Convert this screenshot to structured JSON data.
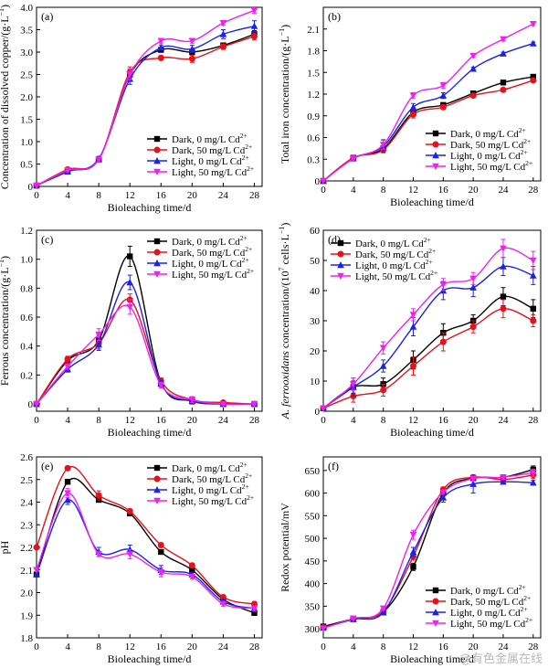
{
  "figure": {
    "watermark": "@有色金属在线",
    "series_legend": [
      {
        "label": "Dark, 0 mg/L Cd",
        "sup": "2+"
      },
      {
        "label": "Dark, 50 mg/L Cd",
        "sup": "2+"
      },
      {
        "label": "Light, 0 mg/L Cd",
        "sup": "2+"
      },
      {
        "label": "Light, 50 mg/L Cd",
        "sup": "2+"
      }
    ],
    "series_colors": [
      "#000000",
      "#e8101a",
      "#1a22e6",
      "#f020f0"
    ],
    "series_markers": [
      "square",
      "circle",
      "triangle-up",
      "triangle-down"
    ]
  },
  "chart_data": [
    {
      "type": "line",
      "panel_label": "(a)",
      "xlabel": "Bioleaching time/d",
      "ylabel": "Concentration of dissolved copper/(g·L",
      "ylabel_sup": "−1",
      "ylabel_tail": ")",
      "x": [
        0,
        4,
        8,
        12,
        16,
        20,
        24,
        28
      ],
      "xlim": [
        0,
        29
      ],
      "ylim": [
        0,
        4
      ],
      "xticks": [
        0,
        4,
        8,
        12,
        16,
        20,
        24,
        28
      ],
      "yticks": [
        0,
        0.5,
        1.0,
        1.5,
        2.0,
        2.5,
        3.0,
        3.5,
        4.0
      ],
      "ytick_labels": [
        "0",
        "0.5",
        "1.0",
        "1.5",
        "2.0",
        "2.5",
        "3.0",
        "3.5",
        "4.0"
      ],
      "legend_position": "lower-right",
      "series": [
        {
          "values": [
            0.02,
            0.35,
            0.6,
            2.5,
            3.05,
            3.0,
            3.15,
            3.4
          ],
          "err": [
            0,
            0.03,
            0.05,
            0.12,
            0.05,
            0.06,
            0.05,
            0.08
          ]
        },
        {
          "values": [
            0.02,
            0.38,
            0.6,
            2.55,
            2.87,
            2.85,
            3.12,
            3.35
          ],
          "err": [
            0,
            0.03,
            0.05,
            0.12,
            0.05,
            0.08,
            0.06,
            0.08
          ]
        },
        {
          "values": [
            0.02,
            0.33,
            0.62,
            2.4,
            3.1,
            3.07,
            3.4,
            3.58
          ],
          "err": [
            0,
            0.03,
            0.05,
            0.12,
            0.06,
            0.08,
            0.1,
            0.12
          ]
        },
        {
          "values": [
            0.02,
            0.36,
            0.6,
            2.5,
            3.25,
            3.25,
            3.65,
            3.93
          ],
          "err": [
            0,
            0.03,
            0.05,
            0.12,
            0.05,
            0.05,
            0.05,
            0.06
          ]
        }
      ]
    },
    {
      "type": "line",
      "panel_label": "(b)",
      "xlabel": "Bioleaching time/d",
      "ylabel": "Total iron concentration/(g·L",
      "ylabel_sup": "−1",
      "ylabel_tail": ")",
      "x": [
        0,
        4,
        8,
        12,
        16,
        20,
        24,
        28
      ],
      "xlim": [
        0,
        29
      ],
      "ylim": [
        0,
        2.4
      ],
      "xticks": [
        0,
        4,
        8,
        12,
        16,
        20,
        24,
        28
      ],
      "yticks": [
        0,
        0.3,
        0.6,
        0.9,
        1.2,
        1.5,
        1.8,
        2.1
      ],
      "ytick_labels": [
        "0",
        "0.3",
        "0.6",
        "0.9",
        "1.2",
        "1.5",
        "1.8",
        "2.1"
      ],
      "legend_position": "lower-right",
      "series": [
        {
          "values": [
            0,
            0.32,
            0.45,
            0.95,
            1.05,
            1.21,
            1.36,
            1.44
          ],
          "err": [
            0,
            0.02,
            0.03,
            0.04,
            0.03,
            0.02,
            0.02,
            0.02
          ]
        },
        {
          "values": [
            0,
            0.32,
            0.43,
            0.92,
            1.02,
            1.18,
            1.26,
            1.39
          ],
          "err": [
            0,
            0.02,
            0.03,
            0.05,
            0.03,
            0.02,
            0.02,
            0.02
          ]
        },
        {
          "values": [
            0,
            0.31,
            0.48,
            1.02,
            1.18,
            1.55,
            1.76,
            1.9
          ],
          "err": [
            0,
            0.02,
            0.09,
            0.05,
            0.04,
            0.02,
            0.02,
            0.02
          ]
        },
        {
          "values": [
            0,
            0.31,
            0.5,
            1.18,
            1.32,
            1.73,
            1.96,
            2.17
          ],
          "err": [
            0,
            0.02,
            0.06,
            0.04,
            0.04,
            0.02,
            0.02,
            0.02
          ]
        }
      ]
    },
    {
      "type": "line",
      "panel_label": "(c)",
      "xlabel": "Bioleaching time/d",
      "ylabel": "Ferrous concentration/(g·L",
      "ylabel_sup": "−1",
      "ylabel_tail": ")",
      "x": [
        0,
        4,
        8,
        12,
        16,
        20,
        24,
        28
      ],
      "xlim": [
        0,
        29
      ],
      "ylim": [
        -0.05,
        1.2
      ],
      "xticks": [
        0,
        4,
        8,
        12,
        16,
        20,
        24,
        28
      ],
      "yticks": [
        0,
        0.2,
        0.4,
        0.6,
        0.8,
        1.0,
        1.2
      ],
      "ytick_labels": [
        "0",
        "0.2",
        "0.4",
        "0.6",
        "0.8",
        "1.0",
        "1.2"
      ],
      "legend_position": "top-right",
      "series": [
        {
          "values": [
            0,
            0.3,
            0.44,
            1.02,
            0.15,
            0.02,
            0.0,
            0.0
          ],
          "err": [
            0,
            0.02,
            0.04,
            0.07,
            0.02,
            0.02,
            0.01,
            0.01
          ]
        },
        {
          "values": [
            0,
            0.31,
            0.42,
            0.72,
            0.16,
            0.03,
            0.01,
            0.0
          ],
          "err": [
            0,
            0.02,
            0.04,
            0.04,
            0.02,
            0.02,
            0.01,
            0.01
          ]
        },
        {
          "values": [
            0,
            0.24,
            0.41,
            0.84,
            0.14,
            0.02,
            0.0,
            0.0
          ],
          "err": [
            0,
            0.02,
            0.04,
            0.05,
            0.02,
            0.02,
            0.01,
            0.01
          ]
        },
        {
          "values": [
            0,
            0.26,
            0.48,
            0.67,
            0.13,
            0.03,
            0.0,
            0.0
          ],
          "err": [
            0,
            0.02,
            0.04,
            0.05,
            0.02,
            0.02,
            0.01,
            0.01
          ]
        }
      ]
    },
    {
      "type": "line",
      "panel_label": "(d)",
      "xlabel": "Bioleaching time/d",
      "ylabel_prefix": "A. ferrooxidans",
      "ylabel": " concentration/(10",
      "ylabel_sup": "7",
      "ylabel_tail": " cells·L",
      "ylabel_sup2": "−1",
      "ylabel_tail2": ")",
      "x": [
        0,
        4,
        8,
        12,
        16,
        20,
        24,
        28
      ],
      "xlim": [
        0,
        29
      ],
      "ylim": [
        0,
        60
      ],
      "xticks": [
        0,
        4,
        8,
        12,
        16,
        20,
        24,
        28
      ],
      "yticks": [
        0,
        10,
        20,
        30,
        40,
        50,
        60
      ],
      "ytick_labels": [
        "0",
        "10",
        "20",
        "30",
        "40",
        "50",
        "60"
      ],
      "legend_position": "top-left",
      "series": [
        {
          "values": [
            1,
            8,
            9,
            17,
            26,
            30,
            38,
            34
          ],
          "err": [
            0,
            2,
            2,
            3,
            3,
            2,
            3,
            3
          ]
        },
        {
          "values": [
            1,
            5,
            7,
            15,
            23,
            28,
            34,
            30
          ],
          "err": [
            0,
            2,
            2,
            3,
            3,
            2,
            3,
            2
          ]
        },
        {
          "values": [
            1,
            8,
            15,
            28,
            40,
            41,
            48,
            45
          ],
          "err": [
            0,
            3,
            2,
            3,
            3,
            3,
            3,
            3
          ]
        },
        {
          "values": [
            1,
            9,
            21,
            32,
            42,
            44,
            54,
            50
          ],
          "err": [
            0,
            2,
            2,
            2,
            2,
            2,
            3,
            3
          ]
        }
      ]
    },
    {
      "type": "line",
      "panel_label": "(e)",
      "xlabel": "Bioleaching time/d",
      "ylabel": "pH",
      "x": [
        0,
        4,
        8,
        12,
        16,
        20,
        24,
        28
      ],
      "xlim": [
        0,
        29
      ],
      "ylim": [
        1.8,
        2.6
      ],
      "xticks": [
        0,
        4,
        8,
        12,
        16,
        20,
        24,
        28
      ],
      "yticks": [
        1.8,
        1.9,
        2.0,
        2.1,
        2.2,
        2.3,
        2.4,
        2.5,
        2.6
      ],
      "ytick_labels": [
        "1.8",
        "1.9",
        "2.0",
        "2.1",
        "2.2",
        "2.3",
        "2.4",
        "2.5",
        "2.6"
      ],
      "legend_position": "top-right",
      "series": [
        {
          "values": [
            2.08,
            2.49,
            2.41,
            2.35,
            2.18,
            2.1,
            1.97,
            1.91
          ],
          "err": [
            0,
            0.01,
            0.01,
            0.01,
            0.01,
            0.01,
            0.01,
            0.01
          ]
        },
        {
          "values": [
            2.2,
            2.55,
            2.43,
            2.36,
            2.21,
            2.12,
            1.98,
            1.95
          ],
          "err": [
            0,
            0.01,
            0.02,
            0.01,
            0.01,
            0.01,
            0.01,
            0.01
          ]
        },
        {
          "values": [
            2.08,
            2.41,
            2.18,
            2.19,
            2.1,
            2.08,
            1.96,
            1.93
          ],
          "err": [
            0,
            0.02,
            0.02,
            0.02,
            0.02,
            0.01,
            0.01,
            0.01
          ]
        },
        {
          "values": [
            2.1,
            2.44,
            2.17,
            2.17,
            2.09,
            2.07,
            1.95,
            1.93
          ],
          "err": [
            0,
            0.02,
            0.01,
            0.02,
            0.02,
            0.01,
            0.01,
            0.01
          ]
        }
      ]
    },
    {
      "type": "line",
      "panel_label": "(f)",
      "xlabel": "Bioleaching time/d",
      "ylabel": "Redox potential/mV",
      "x": [
        0,
        4,
        8,
        12,
        16,
        20,
        24,
        28
      ],
      "xlim": [
        0,
        29
      ],
      "ylim": [
        280,
        680
      ],
      "xticks": [
        0,
        4,
        8,
        12,
        16,
        20,
        24,
        28
      ],
      "yticks": [
        300,
        350,
        400,
        450,
        500,
        550,
        600,
        650
      ],
      "ytick_labels": [
        "300",
        "350",
        "400",
        "450",
        "500",
        "550",
        "600",
        "650"
      ],
      "legend_position": "lower-right",
      "series": [
        {
          "values": [
            305,
            322,
            337,
            437,
            600,
            633,
            635,
            652
          ],
          "err": [
            0,
            2,
            3,
            8,
            5,
            5,
            5,
            8
          ]
        },
        {
          "values": [
            303,
            322,
            339,
            460,
            608,
            635,
            630,
            640
          ],
          "err": [
            0,
            2,
            3,
            8,
            5,
            5,
            5,
            8
          ]
        },
        {
          "values": [
            302,
            321,
            336,
            470,
            590,
            620,
            625,
            623
          ],
          "err": [
            0,
            2,
            3,
            10,
            10,
            20,
            5,
            5
          ]
        },
        {
          "values": [
            301,
            323,
            345,
            508,
            602,
            632,
            635,
            645
          ],
          "err": [
            0,
            2,
            3,
            10,
            5,
            5,
            5,
            8
          ]
        }
      ]
    }
  ]
}
